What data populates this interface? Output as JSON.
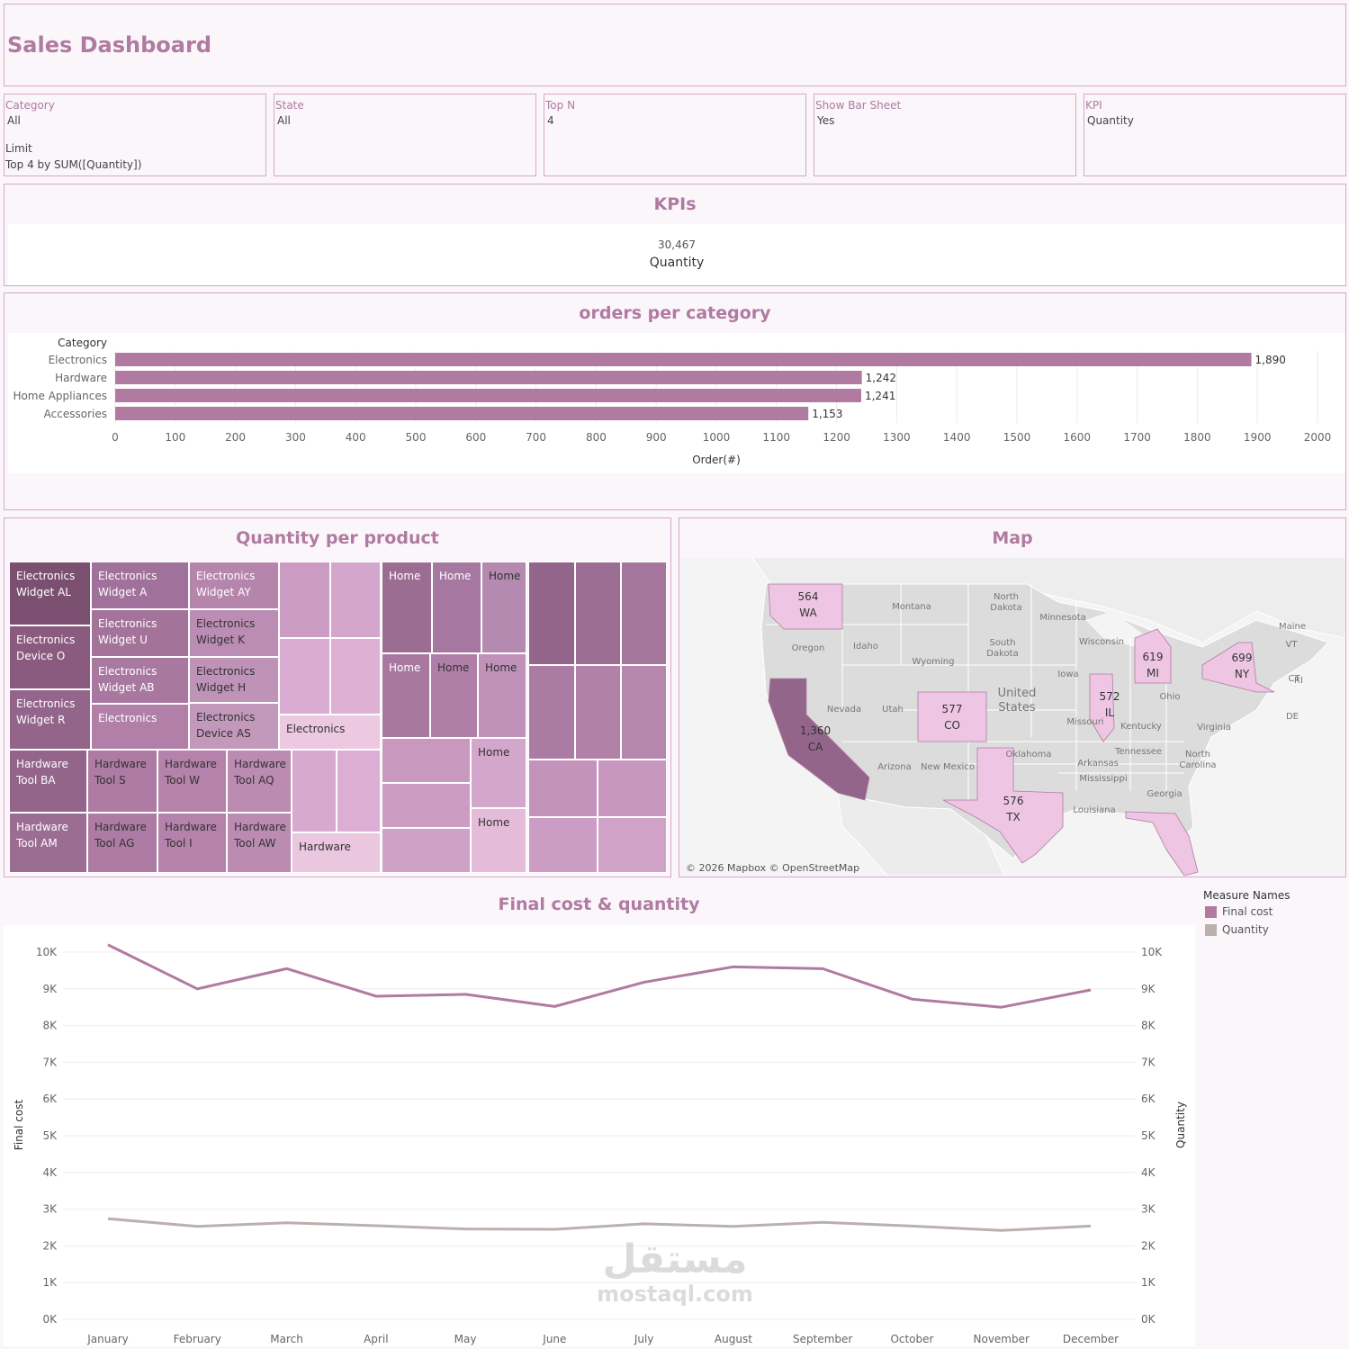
{
  "header": {
    "title": "Sales Dashboard"
  },
  "filters": [
    {
      "label": "Category",
      "value": "All",
      "extra_label": "Limit",
      "extra_value": "Top 4 by SUM([Quantity])"
    },
    {
      "label": "State",
      "value": "All"
    },
    {
      "label": "Top N",
      "value": "4"
    },
    {
      "label": "Show Bar Sheet",
      "value": "Yes"
    },
    {
      "label": "KPI",
      "value": "Quantity"
    }
  ],
  "kpis": {
    "title": "KPIs",
    "value": "30,467",
    "label": "Quantity"
  },
  "bar_section": {
    "title": "orders per category"
  },
  "treemap": {
    "title": "Quantity per product",
    "cells": [
      {
        "label": "Electronics Widget AL",
        "shade": "#7a4f70",
        "text": "light"
      },
      {
        "label": "Electronics Device O",
        "shade": "#8a5b7f",
        "text": "light"
      },
      {
        "label": "Electronics Widget R",
        "shade": "#93658a",
        "text": "light"
      },
      {
        "label": "Electronics Widget A",
        "shade": "#a0719a",
        "text": "light"
      },
      {
        "label": "Electronics Widget U",
        "shade": "#a47399",
        "text": "light"
      },
      {
        "label": "Electronics Widget AB",
        "shade": "#a878a0",
        "text": "light"
      },
      {
        "label": "Electronics",
        "shade": "#b17fa8",
        "text": "light"
      },
      {
        "label": "Electronics Widget AY",
        "shade": "#b585ac",
        "text": "light"
      },
      {
        "label": "Electronics Widget K",
        "shade": "#bb8db4",
        "text": "dark"
      },
      {
        "label": "Electronics Widget H",
        "shade": "#bf93b7",
        "text": "dark"
      },
      {
        "label": "Electronics Device AS",
        "shade": "#c298bb",
        "text": "dark"
      },
      {
        "label": "Electronics",
        "shade": "#ecc8e1",
        "text": "dark"
      },
      {
        "label": "Hardware Tool BA",
        "shade": "#93658a",
        "text": "light"
      },
      {
        "label": "Hardware Tool AM",
        "shade": "#9c6d93",
        "text": "light"
      },
      {
        "label": "Hardware Tool S",
        "shade": "#ad7ba4",
        "text": "dark"
      },
      {
        "label": "Hardware Tool AG",
        "shade": "#ad7ba4",
        "text": "dark"
      },
      {
        "label": "Hardware Tool W",
        "shade": "#b482aa",
        "text": "dark"
      },
      {
        "label": "Hardware Tool I",
        "shade": "#b482aa",
        "text": "dark"
      },
      {
        "label": "Hardware Tool AQ",
        "shade": "#bb8bb2",
        "text": "dark"
      },
      {
        "label": "Hardware Tool AW",
        "shade": "#bb8bb2",
        "text": "dark"
      },
      {
        "label": "Hardware",
        "shade": "#ebc6df",
        "text": "dark"
      },
      {
        "label": "Home",
        "shade": "#9c6d93",
        "text": "light"
      },
      {
        "label": "Home",
        "shade": "#a677a0",
        "text": "light"
      },
      {
        "label": "Home",
        "shade": "#b48ab0",
        "text": "dark"
      },
      {
        "label": "Home",
        "shade": "#a878a0",
        "text": "light"
      },
      {
        "label": "Home",
        "shade": "#b07fa8",
        "text": "dark"
      },
      {
        "label": "Home",
        "shade": "#c091b9",
        "text": "dark"
      },
      {
        "label": "Home",
        "shade": "#d3a6cb",
        "text": "dark"
      },
      {
        "label": "Home",
        "shade": "#e4bcd9",
        "text": "dark"
      }
    ]
  },
  "map": {
    "title": "Map",
    "attribution": "© 2026 Mapbox © OpenStreetMap",
    "country_label": "United States",
    "state_labels": [
      "Montana",
      "North Dakota",
      "Minnesota",
      "Oregon",
      "Idaho",
      "South Dakota",
      "Wisconsin",
      "Wyoming",
      "Iowa",
      "Nevada",
      "Utah",
      "Ohio",
      "Missouri",
      "Kentucky",
      "Virginia",
      "Arizona",
      "New Mexico",
      "Oklahoma",
      "Tennessee",
      "Arkansas",
      "North Carolina",
      "Mississippi",
      "Georgia",
      "Louisiana",
      "Maine",
      "VT",
      "CT",
      "RI",
      "DE"
    ],
    "markers": [
      {
        "value": "564",
        "state": "WA"
      },
      {
        "value": "619",
        "state": "MI"
      },
      {
        "value": "699",
        "state": "NY"
      },
      {
        "value": "572",
        "state": "IL"
      },
      {
        "value": "577",
        "state": "CO"
      },
      {
        "value": "1,360",
        "state": "CA"
      },
      {
        "value": "576",
        "state": "TX"
      }
    ]
  },
  "line_section": {
    "title": "Final cost & quantity",
    "legend_title": "Measure Names",
    "legend": [
      {
        "name": "Final cost",
        "color": "#b07aa1"
      },
      {
        "name": "Quantity",
        "color": "#bab0ac"
      }
    ]
  },
  "chart_data": [
    {
      "type": "bar",
      "title": "orders per category",
      "categories_header": "Category",
      "categories": [
        "Electronics",
        "Hardware",
        "Home Appliances",
        "Accessories"
      ],
      "values": [
        1890,
        1242,
        1241,
        1153
      ],
      "value_labels": [
        "1,890",
        "1,242",
        "1,241",
        "1,153"
      ],
      "xlabel": "Order(#)",
      "xlim": [
        0,
        2000
      ],
      "ticks": [
        "0",
        "100",
        "200",
        "300",
        "400",
        "500",
        "600",
        "700",
        "800",
        "900",
        "1000",
        "1100",
        "1200",
        "1300",
        "1400",
        "1500",
        "1600",
        "1700",
        "1800",
        "1900",
        "2000"
      ],
      "color": "#b07aa1"
    },
    {
      "type": "line",
      "title": "Final cost & quantity",
      "x": [
        "January",
        "February",
        "March",
        "April",
        "May",
        "June",
        "July",
        "August",
        "September",
        "October",
        "November",
        "December"
      ],
      "series": [
        {
          "name": "Final cost",
          "axis": "left",
          "color": "#b07aa1",
          "values": [
            10200,
            9000,
            9550,
            8800,
            8850,
            8520,
            9180,
            9600,
            9550,
            8720,
            8500,
            8970
          ]
        },
        {
          "name": "Quantity",
          "axis": "right",
          "color": "#bab0ac",
          "values": [
            2740,
            2530,
            2630,
            2550,
            2460,
            2450,
            2600,
            2530,
            2640,
            2540,
            2420,
            2540
          ]
        }
      ],
      "ylabel_left": "Final cost",
      "ylabel_right": "Quantity",
      "ylim": [
        0,
        10500
      ],
      "yticks": [
        "0K",
        "1K",
        "2K",
        "3K",
        "4K",
        "5K",
        "6K",
        "7K",
        "8K",
        "9K",
        "10K"
      ],
      "grid": true
    }
  ],
  "watermark": {
    "arabic": "مستقل",
    "latin": "mostaql.com"
  }
}
